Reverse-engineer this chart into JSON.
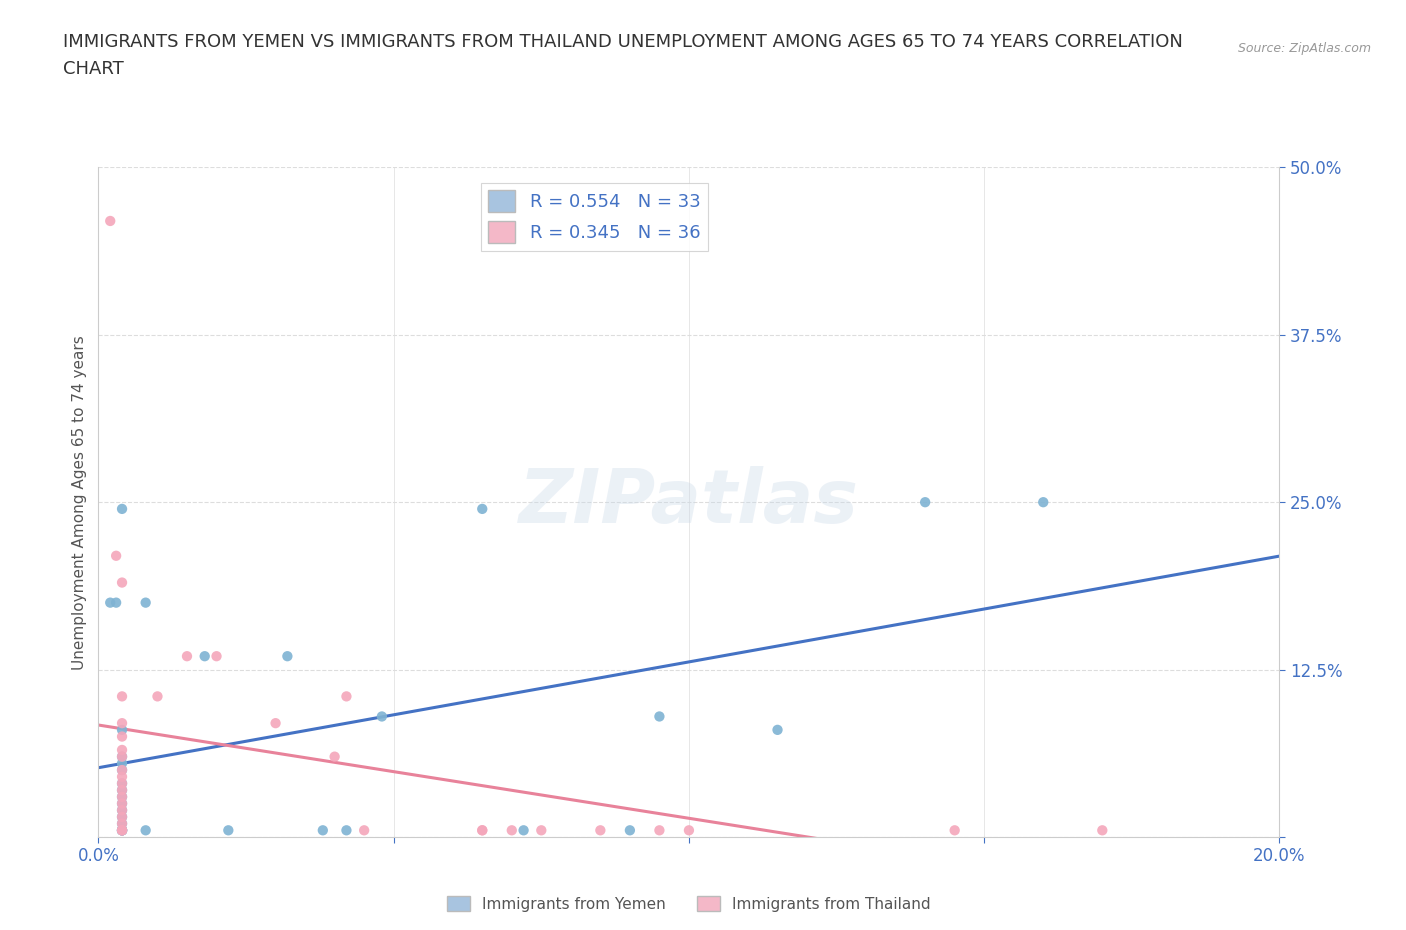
{
  "title_line1": "IMMIGRANTS FROM YEMEN VS IMMIGRANTS FROM THAILAND UNEMPLOYMENT AMONG AGES 65 TO 74 YEARS CORRELATION",
  "title_line2": "CHART",
  "source_text": "Source: ZipAtlas.com",
  "ylabel": "Unemployment Among Ages 65 to 74 years",
  "xlim": [
    0.0,
    0.2
  ],
  "ylim": [
    0.0,
    0.5
  ],
  "xticks": [
    0.0,
    0.05,
    0.1,
    0.15,
    0.2
  ],
  "yticks": [
    0.0,
    0.125,
    0.25,
    0.375,
    0.5
  ],
  "xticklabels": [
    "0.0%",
    "",
    "",
    "",
    "20.0%"
  ],
  "yticklabels": [
    "",
    "12.5%",
    "25.0%",
    "37.5%",
    "50.0%"
  ],
  "legend_entries": [
    {
      "label": "R = 0.554   N = 33",
      "color": "#a8c4e0"
    },
    {
      "label": "R = 0.345   N = 36",
      "color": "#f4b8c8"
    }
  ],
  "legend_bottom": [
    {
      "label": "Immigrants from Yemen",
      "color": "#a8c4e0"
    },
    {
      "label": "Immigrants from Thailand",
      "color": "#f4b8c8"
    }
  ],
  "watermark": "ZIPatlas",
  "yemen_color": "#7fb3d3",
  "thailand_color": "#f4a7bb",
  "yemen_line_color": "#4472c4",
  "thailand_line_color": "#e8829a",
  "background_color": "#ffffff",
  "grid_color": "#dddddd",
  "tick_color": "#4472c4",
  "title_fontsize": 13,
  "axis_label_fontsize": 11,
  "tick_fontsize": 12,
  "yemen_scatter": [
    [
      0.002,
      0.175
    ],
    [
      0.003,
      0.175
    ],
    [
      0.004,
      0.245
    ],
    [
      0.004,
      0.08
    ],
    [
      0.004,
      0.06
    ],
    [
      0.004,
      0.055
    ],
    [
      0.004,
      0.05
    ],
    [
      0.004,
      0.04
    ],
    [
      0.004,
      0.035
    ],
    [
      0.004,
      0.03
    ],
    [
      0.004,
      0.025
    ],
    [
      0.004,
      0.02
    ],
    [
      0.004,
      0.015
    ],
    [
      0.004,
      0.01
    ],
    [
      0.004,
      0.005
    ],
    [
      0.004,
      0.005
    ],
    [
      0.004,
      0.005
    ],
    [
      0.004,
      0.005
    ],
    [
      0.008,
      0.175
    ],
    [
      0.008,
      0.005
    ],
    [
      0.018,
      0.135
    ],
    [
      0.022,
      0.005
    ],
    [
      0.032,
      0.135
    ],
    [
      0.038,
      0.005
    ],
    [
      0.042,
      0.005
    ],
    [
      0.048,
      0.09
    ],
    [
      0.065,
      0.245
    ],
    [
      0.072,
      0.005
    ],
    [
      0.09,
      0.005
    ],
    [
      0.095,
      0.09
    ],
    [
      0.115,
      0.08
    ],
    [
      0.14,
      0.25
    ],
    [
      0.16,
      0.25
    ]
  ],
  "thailand_scatter": [
    [
      0.002,
      0.46
    ],
    [
      0.003,
      0.21
    ],
    [
      0.004,
      0.19
    ],
    [
      0.004,
      0.105
    ],
    [
      0.004,
      0.085
    ],
    [
      0.004,
      0.075
    ],
    [
      0.004,
      0.065
    ],
    [
      0.004,
      0.06
    ],
    [
      0.004,
      0.05
    ],
    [
      0.004,
      0.045
    ],
    [
      0.004,
      0.04
    ],
    [
      0.004,
      0.035
    ],
    [
      0.004,
      0.03
    ],
    [
      0.004,
      0.025
    ],
    [
      0.004,
      0.02
    ],
    [
      0.004,
      0.015
    ],
    [
      0.004,
      0.01
    ],
    [
      0.004,
      0.005
    ],
    [
      0.004,
      0.005
    ],
    [
      0.004,
      0.005
    ],
    [
      0.01,
      0.105
    ],
    [
      0.015,
      0.135
    ],
    [
      0.02,
      0.135
    ],
    [
      0.03,
      0.085
    ],
    [
      0.04,
      0.06
    ],
    [
      0.042,
      0.105
    ],
    [
      0.045,
      0.005
    ],
    [
      0.065,
      0.005
    ],
    [
      0.065,
      0.005
    ],
    [
      0.07,
      0.005
    ],
    [
      0.075,
      0.005
    ],
    [
      0.085,
      0.005
    ],
    [
      0.095,
      0.005
    ],
    [
      0.1,
      0.005
    ],
    [
      0.145,
      0.005
    ],
    [
      0.17,
      0.005
    ]
  ]
}
